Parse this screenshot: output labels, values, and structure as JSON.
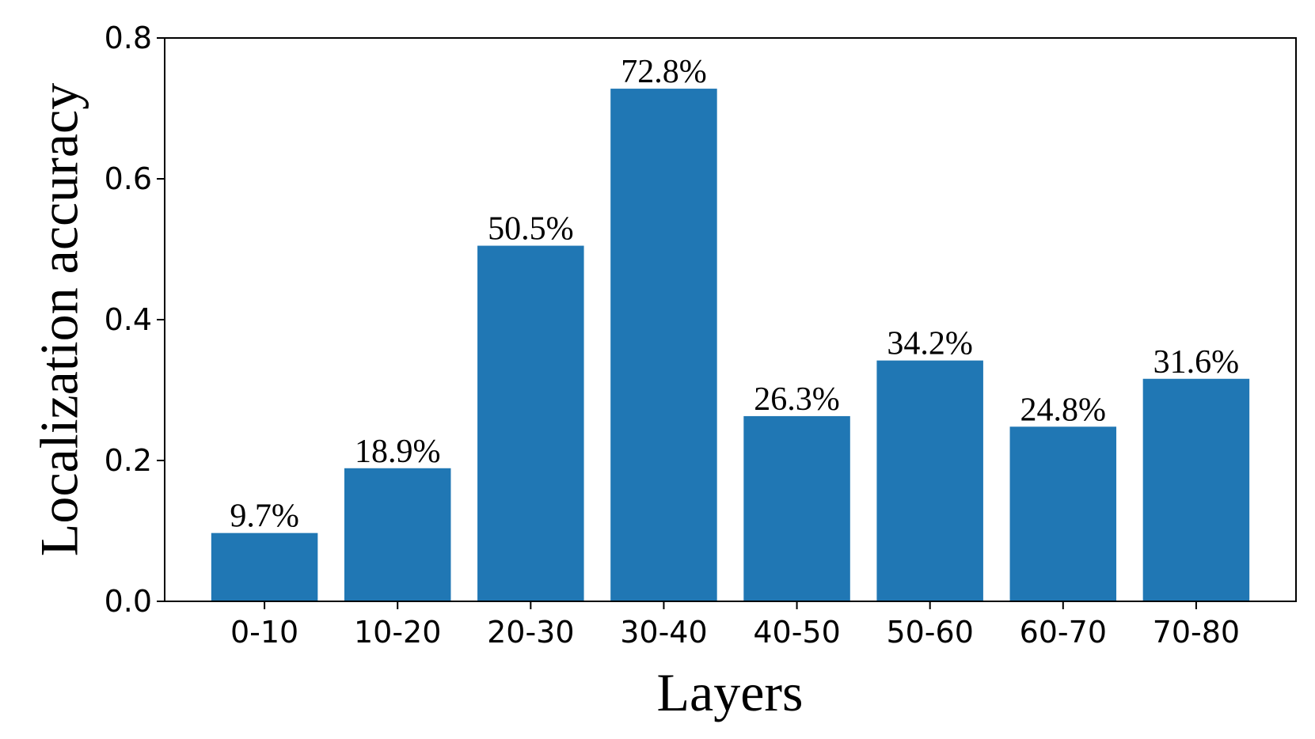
{
  "chart_data": {
    "type": "bar",
    "x_label": "Layers",
    "y_label": "Localization accuracy",
    "categories": [
      "0-10",
      "10-20",
      "20-30",
      "30-40",
      "40-50",
      "50-60",
      "60-70",
      "70-80"
    ],
    "values": [
      0.097,
      0.189,
      0.505,
      0.728,
      0.263,
      0.342,
      0.248,
      0.316
    ],
    "value_labels": [
      "9.7%",
      "18.9%",
      "50.5%",
      "72.8%",
      "26.3%",
      "34.2%",
      "24.8%",
      "31.6%"
    ],
    "color": "#2077b4",
    "ylim": [
      0,
      0.8
    ],
    "yticks": [
      {
        "value": 0,
        "label": "0.0"
      },
      0.2,
      0.4,
      0.6,
      0.8
    ],
    "grid": false
  }
}
